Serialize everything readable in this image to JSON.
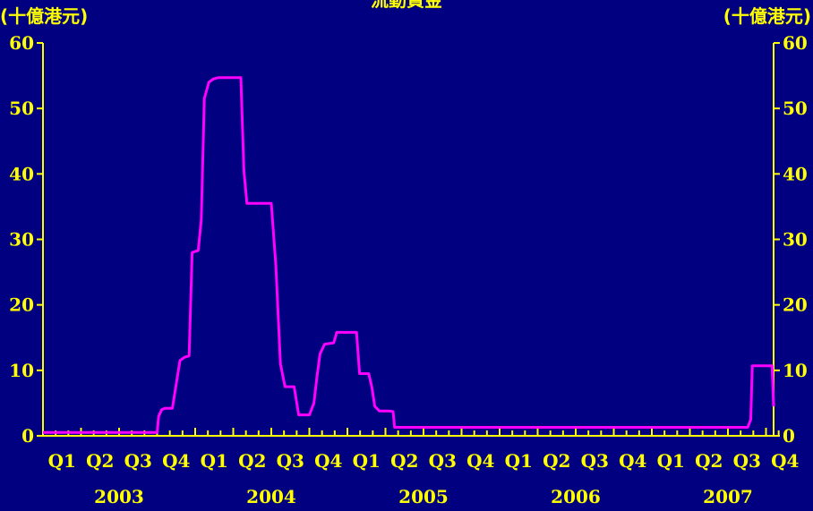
{
  "title": "流動資金",
  "unit_left": "(十億港元)",
  "unit_right": "(十億港元)",
  "colors": {
    "background": "#000080",
    "axis": "#ffff00",
    "series": "#ff00ff",
    "text": "#ffff00"
  },
  "chart_data": {
    "type": "line",
    "title": "流動資金",
    "xlabel": "",
    "ylabel": "(十億港元)",
    "ylim": [
      0,
      60
    ],
    "xlim": [
      2003.0,
      2007.8
    ],
    "y_ticks": [
      0,
      10,
      20,
      30,
      40,
      50,
      60
    ],
    "y_axes": [
      "left",
      "right"
    ],
    "grid": false,
    "quarter_labels": [
      "Q1",
      "Q2",
      "Q3",
      "Q4",
      "Q1",
      "Q2",
      "Q3",
      "Q4",
      "Q1",
      "Q2",
      "Q3",
      "Q4",
      "Q1",
      "Q2",
      "Q3",
      "Q4",
      "Q1",
      "Q2",
      "Q3",
      "Q4"
    ],
    "year_labels": [
      "2003",
      "2004",
      "2005",
      "2006",
      "2007"
    ],
    "series": [
      {
        "points": [
          [
            2003.0,
            0.5
          ],
          [
            2003.75,
            0.5
          ],
          [
            2003.76,
            3.0
          ],
          [
            2003.78,
            4.0
          ],
          [
            2003.8,
            4.2
          ],
          [
            2003.85,
            4.2
          ],
          [
            2003.9,
            11.5
          ],
          [
            2003.93,
            12.0
          ],
          [
            2003.96,
            12.2
          ],
          [
            2003.98,
            28.0
          ],
          [
            2004.02,
            28.3
          ],
          [
            2004.04,
            33.0
          ],
          [
            2004.06,
            51.5
          ],
          [
            2004.09,
            54.0
          ],
          [
            2004.12,
            54.5
          ],
          [
            2004.15,
            54.7
          ],
          [
            2004.3,
            54.7
          ],
          [
            2004.32,
            40.5
          ],
          [
            2004.34,
            35.5
          ],
          [
            2004.5,
            35.5
          ],
          [
            2004.53,
            26.0
          ],
          [
            2004.56,
            11.0
          ],
          [
            2004.59,
            7.5
          ],
          [
            2004.65,
            7.5
          ],
          [
            2004.68,
            3.2
          ],
          [
            2004.75,
            3.2
          ],
          [
            2004.78,
            5.0
          ],
          [
            2004.8,
            9.0
          ],
          [
            2004.82,
            12.5
          ],
          [
            2004.85,
            14.0
          ],
          [
            2004.91,
            14.2
          ],
          [
            2004.93,
            15.8
          ],
          [
            2005.06,
            15.8
          ],
          [
            2005.08,
            9.5
          ],
          [
            2005.14,
            9.5
          ],
          [
            2005.16,
            7.5
          ],
          [
            2005.18,
            4.5
          ],
          [
            2005.21,
            3.8
          ],
          [
            2005.27,
            3.8
          ],
          [
            2005.3,
            3.7
          ],
          [
            2005.31,
            1.3
          ],
          [
            2007.63,
            1.3
          ],
          [
            2007.65,
            2.5
          ],
          [
            2007.66,
            10.7
          ],
          [
            2007.79,
            10.7
          ],
          [
            2007.8,
            4.5
          ]
        ]
      }
    ]
  }
}
